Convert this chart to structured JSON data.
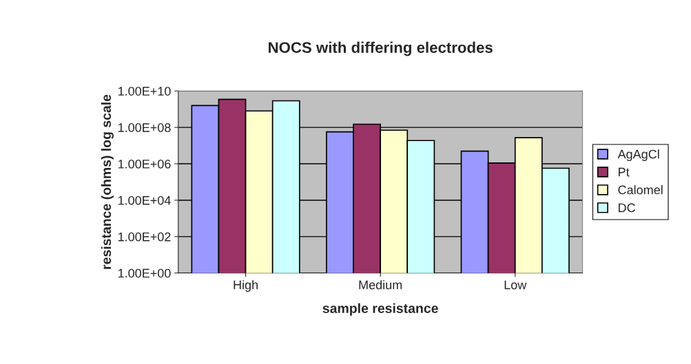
{
  "chart_data": {
    "type": "bar",
    "title": "NOCS with differing electrodes",
    "xlabel": "sample resistance",
    "ylabel": "resistance (ohms) log scale",
    "categories": [
      "High",
      "Medium",
      "Low"
    ],
    "series": [
      {
        "name": "AgAgCl",
        "color": "#9999ff",
        "values": [
          1600000000.0,
          57000000.0,
          5000000.0
        ]
      },
      {
        "name": "Pt",
        "color": "#993366",
        "values": [
          3500000000.0,
          150000000.0,
          1100000.0
        ]
      },
      {
        "name": "Calomel",
        "color": "#ffffcc",
        "values": [
          800000000.0,
          70000000.0,
          27000000.0
        ]
      },
      {
        "name": "DC",
        "color": "#ccffff",
        "values": [
          2900000000.0,
          19000000.0,
          570000.0
        ]
      }
    ],
    "log": "y",
    "ylim": [
      1,
      10000000000.0
    ],
    "yticks": [
      {
        "value": 1,
        "label": "1.00E+00"
      },
      {
        "value": 100,
        "label": "1.00E+02"
      },
      {
        "value": 10000,
        "label": "1.00E+04"
      },
      {
        "value": 1000000,
        "label": "1.00E+06"
      },
      {
        "value": 100000000,
        "label": "1.00E+08"
      },
      {
        "value": 10000000000,
        "label": "1.00E+10"
      }
    ],
    "grid": "y",
    "legend": "right"
  }
}
